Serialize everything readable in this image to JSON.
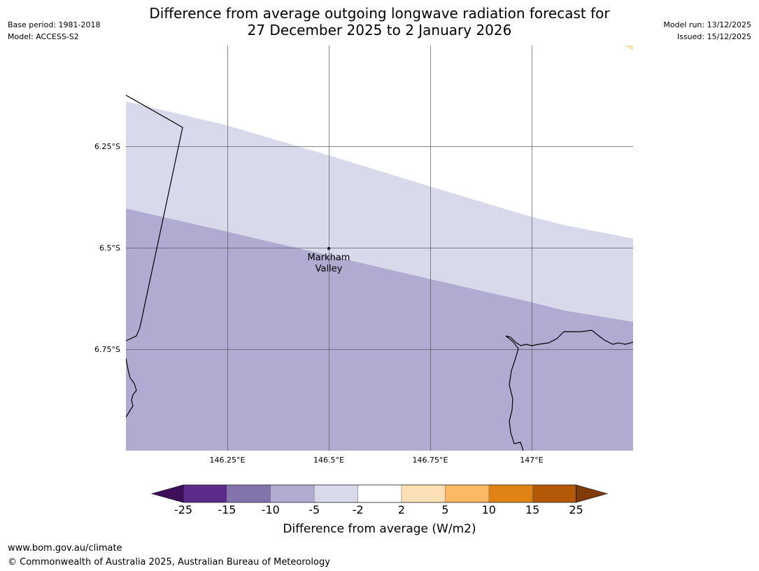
{
  "header": {
    "title_line1": "Difference from average outgoing longwave radiation forecast for",
    "title_line2": "27 December 2025 to 2 January 2026",
    "base_period": "Base period: 1981-2018",
    "model": "Model: ACCESS-S2",
    "model_run": "Model run: 13/12/2025",
    "issued": "Issued: 15/12/2025"
  },
  "map": {
    "lat_labels": [
      "6.25°S",
      "6.5°S",
      "6.75°S"
    ],
    "lon_labels": [
      "146.25°E",
      "146.5°E",
      "146.75°E",
      "147°E"
    ],
    "place": {
      "line1": "Markham",
      "line2": "Valley"
    }
  },
  "colorbar": {
    "ticks": [
      "-25",
      "-15",
      "-10",
      "-5",
      "-2",
      "2",
      "5",
      "10",
      "15",
      "25"
    ],
    "colors": [
      "#3f0f5b",
      "#5b2a8a",
      "#8474ae",
      "#b1abd2",
      "#d8d9ea",
      "#ffffff",
      "#fee0b6",
      "#fdb863",
      "#e08214",
      "#b35806",
      "#7f3b08"
    ],
    "label": "Difference from average (W/m2)"
  },
  "footer": {
    "url": "www.bom.gov.au/climate",
    "copyright": "© Commonwealth of Australia 2025, Australian Bureau of Meteorology"
  }
}
